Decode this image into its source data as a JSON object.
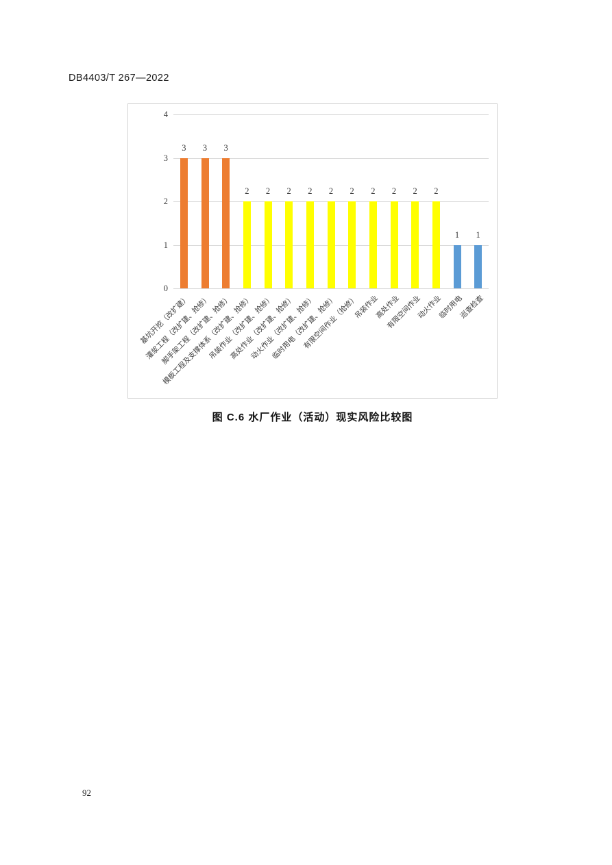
{
  "page": {
    "header": "DB4403/T 267—2022",
    "caption": "图 C.6  水厂作业（活动）现实风险比较图",
    "page_number": "92"
  },
  "chart_data": {
    "type": "bar",
    "title": "图 C.6 水厂作业（活动）现实风险比较图",
    "categories": [
      "基坑开挖（改扩建）",
      "灌浆工程（改扩建、抢修）",
      "脚手架工程（改扩建、抢修）",
      "模板工程及支撑体系（改扩建、抢修）",
      "吊装作业（改扩建、抢修）",
      "高处作业（改扩建、抢修）",
      "动火作业（改扩建、抢修）",
      "临时用电（改扩建、抢修）",
      "有限空间作业（抢修）",
      "吊装作业",
      "高处作业",
      "有限空间作业",
      "动火作业",
      "临时用电",
      "巡查检查"
    ],
    "values": [
      3,
      3,
      3,
      2,
      2,
      2,
      2,
      2,
      2,
      2,
      2,
      2,
      2,
      1,
      1
    ],
    "data_labels": [
      "3",
      "3",
      "3",
      "2",
      "2",
      "2",
      "2",
      "2",
      "2",
      "2",
      "2",
      "2",
      "2",
      "1",
      "1"
    ],
    "bar_colors": [
      "#ED7D31",
      "#ED7D31",
      "#ED7D31",
      "#FFFF00",
      "#FFFF00",
      "#FFFF00",
      "#FFFF00",
      "#FFFF00",
      "#FFFF00",
      "#FFFF00",
      "#FFFF00",
      "#FFFF00",
      "#FFFF00",
      "#5B9BD5",
      "#5B9BD5"
    ],
    "xlabel": "",
    "ylabel": "",
    "ylim": [
      0,
      4
    ],
    "yticks": [
      0,
      1,
      2,
      3,
      4
    ],
    "grid": true,
    "legend": "none",
    "x_label_rotation": -45,
    "colors": {
      "grid": "#D9D9D9",
      "frame_border": "#D2D2D2",
      "axis_text": "#3D3D3D",
      "category_text": "#404040",
      "level_high": "#ED7D31",
      "level_medium": "#FFFF00",
      "level_low": "#5B9BD5"
    }
  }
}
